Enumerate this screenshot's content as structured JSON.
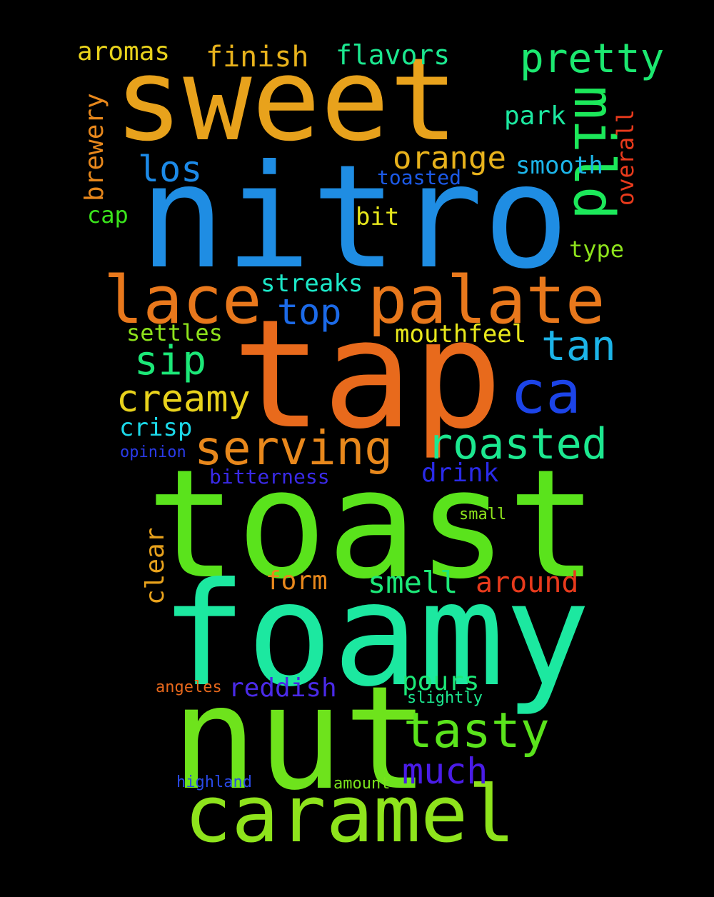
{
  "words": [
    {
      "text": "sweet",
      "color": "#e8a21c"
    },
    {
      "text": "nitro",
      "color": "#1f8de3"
    },
    {
      "text": "tap",
      "color": "#e86a1c"
    },
    {
      "text": "toast",
      "color": "#5ae31c"
    },
    {
      "text": "foamy",
      "color": "#1ce8a0"
    },
    {
      "text": "nut",
      "color": "#6ee31c"
    },
    {
      "text": "caramel",
      "color": "#8ee31c"
    },
    {
      "text": "palate",
      "color": "#e8781c"
    },
    {
      "text": "lace",
      "color": "#e8781c"
    },
    {
      "text": "serving",
      "color": "#e8881c"
    },
    {
      "text": "roasted",
      "color": "#1ce890"
    },
    {
      "text": "ca",
      "color": "#1c44e8"
    },
    {
      "text": "mild",
      "color": "#1ce85a"
    },
    {
      "text": "pretty",
      "color": "#1ce870"
    },
    {
      "text": "tasty",
      "color": "#5ae31c"
    },
    {
      "text": "creamy",
      "color": "#e8d21c"
    },
    {
      "text": "tan",
      "color": "#1cb4e8"
    },
    {
      "text": "sip",
      "color": "#1ce878"
    },
    {
      "text": "top",
      "color": "#1c6ae8"
    },
    {
      "text": "los",
      "color": "#1c8ae8"
    },
    {
      "text": "orange",
      "color": "#e8b21c"
    },
    {
      "text": "much",
      "color": "#4a1ce8"
    },
    {
      "text": "smell",
      "color": "#1ce878"
    },
    {
      "text": "around",
      "color": "#e83a1c"
    },
    {
      "text": "finish",
      "color": "#e8b21c"
    },
    {
      "text": "flavors",
      "color": "#1ce890"
    },
    {
      "text": "aromas",
      "color": "#e8d21c"
    },
    {
      "text": "brewery",
      "color": "#e8881c"
    },
    {
      "text": "overall",
      "color": "#e83a1c"
    },
    {
      "text": "park",
      "color": "#1ce8a0"
    },
    {
      "text": "smooth",
      "color": "#1cb4e8"
    },
    {
      "text": "toasted",
      "color": "#1c5ae8"
    },
    {
      "text": "cap",
      "color": "#3ae31c"
    },
    {
      "text": "bit",
      "color": "#e8e81c"
    },
    {
      "text": "type",
      "color": "#8ee31c"
    },
    {
      "text": "streaks",
      "color": "#1ce8c8"
    },
    {
      "text": "settles",
      "color": "#8ee31c"
    },
    {
      "text": "mouthfeel",
      "color": "#e8e81c"
    },
    {
      "text": "crisp",
      "color": "#1cd8e8"
    },
    {
      "text": "opinion",
      "color": "#2a3ae8"
    },
    {
      "text": "drink",
      "color": "#2a2ae8"
    },
    {
      "text": "bitterness",
      "color": "#3a2ae8"
    },
    {
      "text": "small",
      "color": "#8ee31c"
    },
    {
      "text": "clear",
      "color": "#e8a21c"
    },
    {
      "text": "form",
      "color": "#e8881c"
    },
    {
      "text": "pours",
      "color": "#1ce878"
    },
    {
      "text": "reddish",
      "color": "#4a2ae8"
    },
    {
      "text": "angeles",
      "color": "#e8681c"
    },
    {
      "text": "slightly",
      "color": "#1ce890"
    },
    {
      "text": "highland",
      "color": "#2a4ae8"
    },
    {
      "text": "amount",
      "color": "#7ae31c"
    }
  ]
}
